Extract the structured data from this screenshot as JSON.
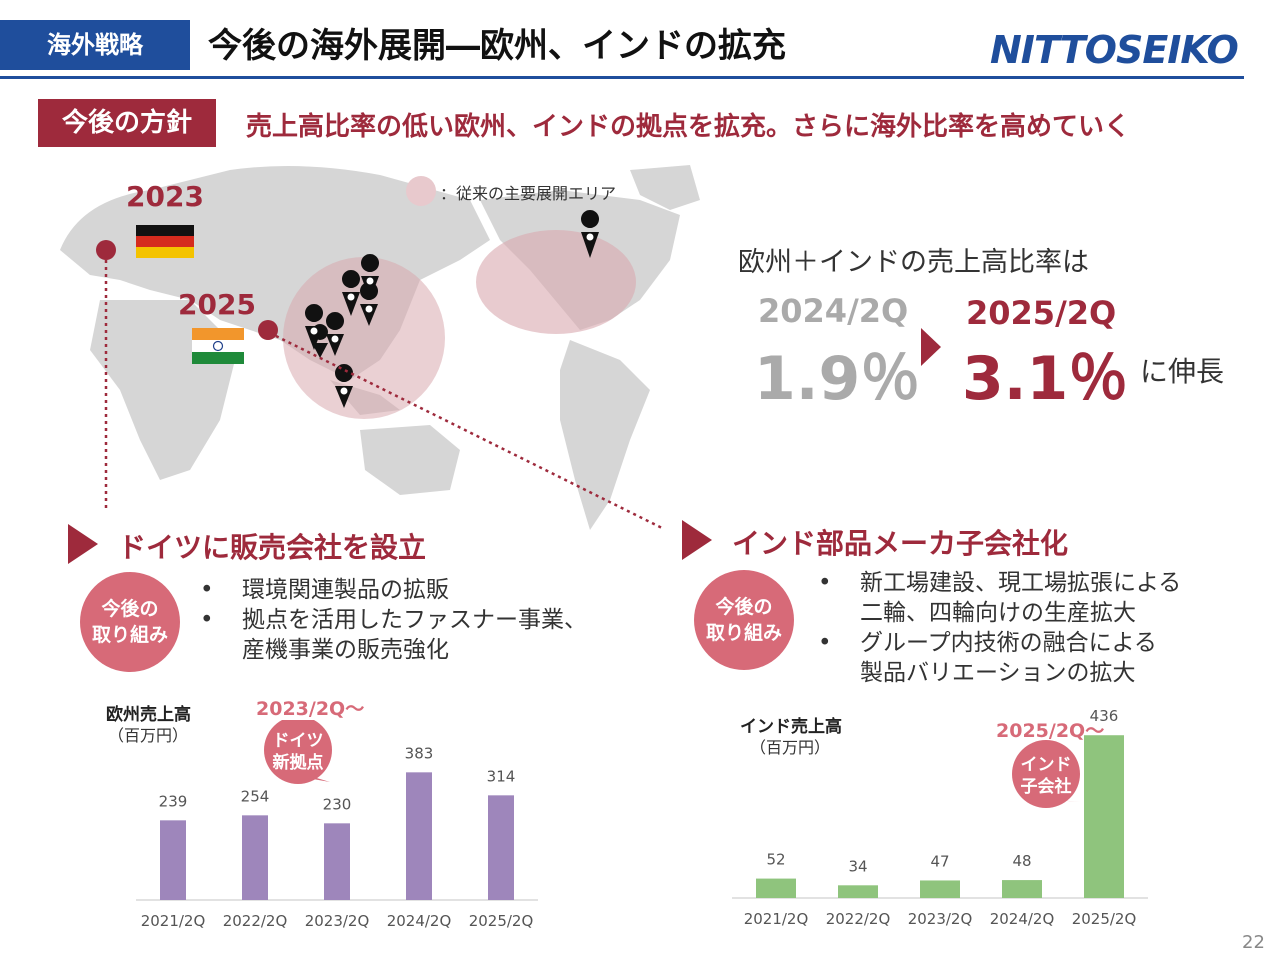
{
  "header": {
    "section_tag": "海外戦略",
    "title": "今後の海外展開―欧州、インドの拡充",
    "logo_text": "NITTOSEIKO"
  },
  "policy": {
    "tag": "今後の方針",
    "text": "売上高比率の低い欧州、インドの拠点を拡充。さらに海外比率を高めていく"
  },
  "map": {
    "legend": "：従来の主要展開エリア",
    "year_germany": "2023",
    "year_india": "2025",
    "colors": {
      "land": "#d6d6d6",
      "area": "#d9a9af",
      "accent": "#9e2a3c"
    }
  },
  "ratio": {
    "caption": "欧州＋インドの売上高比率は",
    "before_label": "2024/2Q",
    "before_value": "1.9％",
    "after_label": "2025/2Q",
    "after_value": "3.1％",
    "growth": "に伸長"
  },
  "europe": {
    "title": "ドイツに販売会社を設立",
    "badge": [
      "今後の",
      "取り組み"
    ],
    "bullets": [
      "環境関連製品の拡販",
      "拠点を活用したファスナー事業、",
      "産機事業の販売強化"
    ],
    "callout_label": "2023/2Q～",
    "callout_bubble": [
      "ドイツ",
      "新拠点"
    ]
  },
  "india": {
    "title": "インド部品メーカ子会社化",
    "badge": [
      "今後の",
      "取り組み"
    ],
    "bullets": [
      "新工場建設、現工場拡張による",
      "二輪、四輪向けの生産拡大",
      "グループ内技術の融合による",
      "製品バリエーションの拡大"
    ],
    "callout_label": "2025/2Q～",
    "callout_bubble": [
      "インド",
      "子会社"
    ]
  },
  "chart_data": [
    {
      "type": "bar",
      "title": "欧州売上高",
      "unit": "（百万円）",
      "categories": [
        "2021/2Q",
        "2022/2Q",
        "2023/2Q",
        "2024/2Q",
        "2025/2Q"
      ],
      "values": [
        239,
        254,
        230,
        383,
        314
      ],
      "ylim": [
        0,
        450
      ],
      "color": "#9e86bb",
      "grid": false
    },
    {
      "type": "bar",
      "title": "インド売上高",
      "unit": "（百万円）",
      "categories": [
        "2021/2Q",
        "2022/2Q",
        "2023/2Q",
        "2024/2Q",
        "2025/2Q"
      ],
      "values": [
        52,
        34,
        47,
        48,
        436
      ],
      "ylim": [
        0,
        450
      ],
      "color": "#8fc47d",
      "grid": false
    }
  ],
  "page_number": "22"
}
